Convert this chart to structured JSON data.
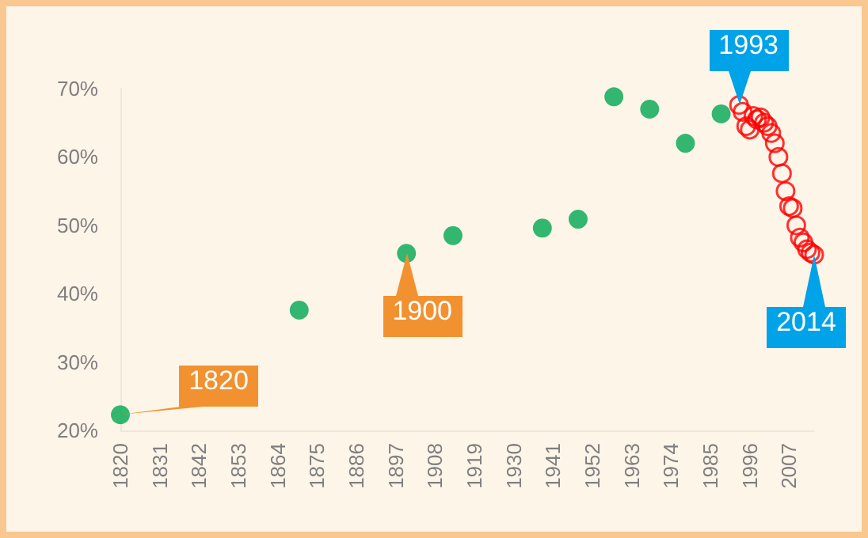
{
  "chart_data": {
    "type": "scatter",
    "marker": "circle",
    "grid": false,
    "xlim": [
      1820,
      2014
    ],
    "xticks": [
      1820,
      1831,
      1842,
      1853,
      1864,
      1875,
      1886,
      1897,
      1908,
      1919,
      1930,
      1941,
      1952,
      1963,
      1974,
      1985,
      1996,
      2007
    ],
    "ylim": [
      20,
      70
    ],
    "yticks": [
      {
        "value": 20,
        "label": "20%"
      },
      {
        "value": 30,
        "label": "30%"
      },
      {
        "value": 40,
        "label": "40%"
      },
      {
        "value": 50,
        "label": "50%"
      },
      {
        "value": 60,
        "label": "60%"
      },
      {
        "value": 70,
        "label": "70%"
      }
    ],
    "series": [
      {
        "color": "#00a650",
        "x": [
          1820,
          1870,
          1900,
          1913,
          1938,
          1948,
          1958,
          1968,
          1978,
          1988
        ],
        "values": [
          22.3,
          37.6,
          45.9,
          48.5,
          49.6,
          50.9,
          68.8,
          67.0,
          62.0,
          66.3
        ]
      },
      {
        "color": "#ff0000",
        "x": [
          1993,
          1994,
          1995,
          1996,
          1997,
          1998,
          1999,
          2000,
          2001,
          2002,
          2003,
          2004,
          2005,
          2006,
          2007,
          2008,
          2009,
          2010,
          2011,
          2012,
          2013,
          2014
        ],
        "values": [
          67.6,
          66.6,
          64.5,
          64.0,
          66.0,
          65.5,
          65.8,
          65.0,
          64.5,
          63.5,
          62.0,
          60.0,
          57.6,
          55.0,
          52.8,
          52.5,
          50.0,
          48.2,
          47.5,
          46.5,
          46.0,
          45.7
        ]
      }
    ],
    "annotations": [
      {
        "text": "1820",
        "x": 1820,
        "y": 22.3
      },
      {
        "text": "1900",
        "x": 1900,
        "y": 45.9
      },
      {
        "text": "1993",
        "x": 1993,
        "y": 67.6
      },
      {
        "text": "2014",
        "x": 2014,
        "y": 45.7
      }
    ]
  }
}
